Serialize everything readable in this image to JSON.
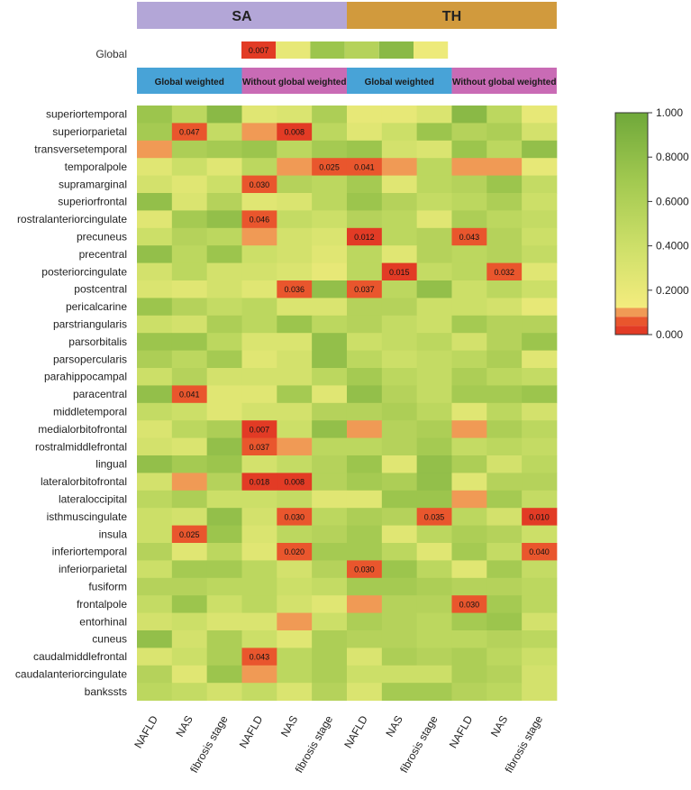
{
  "chart_data": {
    "type": "heatmap",
    "top_groups": [
      {
        "label": "SA",
        "color": "#b3a6d7"
      },
      {
        "label": "TH",
        "color": "#d19a3d"
      }
    ],
    "sub_groups": [
      {
        "label": "Global weighted",
        "color": "#48a3d7"
      },
      {
        "label": "Without global weighted",
        "color": "#c96bb5"
      },
      {
        "label": "Global weighted",
        "color": "#48a3d7"
      },
      {
        "label": "Without global weighted",
        "color": "#c96bb5"
      }
    ],
    "global_row": {
      "label": "Global",
      "values": [
        0.007,
        0.25,
        0.75,
        0.6,
        0.85,
        0.2
      ],
      "value_labels": [
        "0.007",
        "",
        "",
        "",
        "",
        ""
      ]
    },
    "columns": [
      "NAFLD",
      "NAS",
      "fibrosis stage",
      "NAFLD",
      "NAS",
      "fibrosis stage",
      "NAFLD",
      "NAS",
      "fibrosis stage",
      "NAFLD",
      "NAS",
      "fibrosis stage"
    ],
    "rows": [
      "superiortemporal",
      "superiorparietal",
      "transversetemporal",
      "temporalpole",
      "supramarginal",
      "superiorfrontal",
      "rostralanteriorcingulate",
      "precuneus",
      "precentral",
      "posteriorcingulate",
      "postcentral",
      "pericalcarine",
      "parstriangularis",
      "parsorbitalis",
      "parsopercularis",
      "parahippocampal",
      "paracentral",
      "middletemporal",
      "medialorbitofrontal",
      "rostralmiddlefrontal",
      "lingual",
      "lateralorbitofrontal",
      "lateraloccipital",
      "isthmuscingulate",
      "insula",
      "inferiortemporal",
      "inferiorparietal",
      "fusiform",
      "frontalpole",
      "entorhinal",
      "cuneus",
      "caudalmiddlefrontal",
      "caudalanteriorcingulate",
      "bankssts"
    ],
    "values": [
      [
        0.75,
        0.55,
        0.85,
        0.3,
        0.35,
        0.65,
        0.25,
        0.25,
        0.35,
        0.85,
        0.55,
        0.25
      ],
      [
        0.7,
        0.047,
        0.5,
        0.1,
        0.008,
        0.55,
        0.3,
        0.45,
        0.75,
        0.6,
        0.65,
        0.4
      ],
      [
        0.1,
        0.65,
        0.7,
        0.75,
        0.55,
        0.7,
        0.75,
        0.4,
        0.35,
        0.75,
        0.55,
        0.8
      ],
      [
        0.3,
        0.45,
        0.3,
        0.55,
        0.1,
        0.025,
        0.041,
        0.12,
        0.55,
        0.12,
        0.1,
        0.25
      ],
      [
        0.4,
        0.3,
        0.45,
        0.03,
        0.6,
        0.55,
        0.7,
        0.3,
        0.55,
        0.6,
        0.75,
        0.5
      ],
      [
        0.8,
        0.35,
        0.6,
        0.3,
        0.35,
        0.55,
        0.75,
        0.6,
        0.5,
        0.55,
        0.65,
        0.45
      ],
      [
        0.3,
        0.7,
        0.8,
        0.046,
        0.5,
        0.45,
        0.6,
        0.55,
        0.3,
        0.65,
        0.55,
        0.5
      ],
      [
        0.45,
        0.6,
        0.55,
        0.1,
        0.4,
        0.35,
        0.012,
        0.55,
        0.6,
        0.043,
        0.6,
        0.45
      ],
      [
        0.8,
        0.55,
        0.75,
        0.45,
        0.4,
        0.3,
        0.55,
        0.3,
        0.6,
        0.55,
        0.6,
        0.5
      ],
      [
        0.4,
        0.55,
        0.4,
        0.4,
        0.35,
        0.25,
        0.55,
        0.015,
        0.5,
        0.55,
        0.032,
        0.3
      ],
      [
        0.35,
        0.3,
        0.4,
        0.3,
        0.036,
        0.8,
        0.037,
        0.55,
        0.8,
        0.45,
        0.55,
        0.45
      ],
      [
        0.75,
        0.6,
        0.5,
        0.55,
        0.35,
        0.35,
        0.6,
        0.6,
        0.45,
        0.45,
        0.4,
        0.25
      ],
      [
        0.45,
        0.4,
        0.65,
        0.55,
        0.75,
        0.55,
        0.6,
        0.5,
        0.45,
        0.7,
        0.6,
        0.6
      ],
      [
        0.75,
        0.75,
        0.55,
        0.35,
        0.35,
        0.8,
        0.45,
        0.5,
        0.55,
        0.4,
        0.6,
        0.75
      ],
      [
        0.65,
        0.55,
        0.7,
        0.3,
        0.4,
        0.8,
        0.55,
        0.45,
        0.5,
        0.55,
        0.65,
        0.3
      ],
      [
        0.45,
        0.6,
        0.4,
        0.4,
        0.4,
        0.55,
        0.7,
        0.55,
        0.5,
        0.65,
        0.55,
        0.5
      ],
      [
        0.8,
        0.041,
        0.3,
        0.3,
        0.7,
        0.3,
        0.8,
        0.6,
        0.5,
        0.7,
        0.7,
        0.75
      ],
      [
        0.5,
        0.45,
        0.3,
        0.4,
        0.4,
        0.6,
        0.6,
        0.65,
        0.55,
        0.3,
        0.55,
        0.4
      ],
      [
        0.35,
        0.55,
        0.65,
        0.007,
        0.45,
        0.8,
        0.12,
        0.6,
        0.65,
        0.12,
        0.65,
        0.55
      ],
      [
        0.4,
        0.35,
        0.8,
        0.037,
        0.12,
        0.55,
        0.55,
        0.6,
        0.7,
        0.5,
        0.55,
        0.5
      ],
      [
        0.8,
        0.7,
        0.75,
        0.4,
        0.5,
        0.6,
        0.75,
        0.3,
        0.8,
        0.65,
        0.4,
        0.55
      ],
      [
        0.4,
        0.12,
        0.6,
        0.018,
        0.008,
        0.6,
        0.7,
        0.65,
        0.8,
        0.3,
        0.6,
        0.6
      ],
      [
        0.55,
        0.65,
        0.45,
        0.45,
        0.5,
        0.3,
        0.3,
        0.75,
        0.75,
        0.12,
        0.7,
        0.5
      ],
      [
        0.45,
        0.4,
        0.8,
        0.4,
        0.03,
        0.55,
        0.65,
        0.6,
        0.035,
        0.55,
        0.4,
        0.01
      ],
      [
        0.45,
        0.025,
        0.75,
        0.35,
        0.55,
        0.6,
        0.7,
        0.3,
        0.55,
        0.65,
        0.6,
        0.45
      ],
      [
        0.6,
        0.3,
        0.55,
        0.3,
        0.02,
        0.7,
        0.7,
        0.55,
        0.3,
        0.7,
        0.5,
        0.04
      ],
      [
        0.45,
        0.7,
        0.7,
        0.55,
        0.4,
        0.6,
        0.03,
        0.75,
        0.55,
        0.3,
        0.7,
        0.5
      ],
      [
        0.6,
        0.6,
        0.55,
        0.55,
        0.45,
        0.5,
        0.7,
        0.7,
        0.65,
        0.6,
        0.6,
        0.55
      ],
      [
        0.5,
        0.75,
        0.45,
        0.55,
        0.4,
        0.3,
        0.12,
        0.6,
        0.6,
        0.03,
        0.7,
        0.55
      ],
      [
        0.4,
        0.45,
        0.35,
        0.35,
        0.12,
        0.45,
        0.65,
        0.6,
        0.55,
        0.7,
        0.75,
        0.4
      ],
      [
        0.8,
        0.4,
        0.65,
        0.45,
        0.3,
        0.65,
        0.6,
        0.6,
        0.55,
        0.55,
        0.6,
        0.55
      ],
      [
        0.35,
        0.45,
        0.65,
        0.043,
        0.55,
        0.65,
        0.35,
        0.65,
        0.6,
        0.65,
        0.55,
        0.45
      ],
      [
        0.6,
        0.3,
        0.75,
        0.12,
        0.55,
        0.65,
        0.45,
        0.45,
        0.45,
        0.65,
        0.6,
        0.4
      ],
      [
        0.55,
        0.5,
        0.4,
        0.5,
        0.35,
        0.6,
        0.35,
        0.7,
        0.7,
        0.6,
        0.55,
        0.4
      ]
    ],
    "color_scale": {
      "min": 0.0,
      "max": 1.0,
      "ticks": [
        1.0,
        0.8,
        0.6,
        0.4,
        0.2,
        0.0
      ],
      "tick_labels": [
        "1.000",
        "0.8000",
        "0.6000",
        "0.4000",
        "0.2000",
        "0.000"
      ],
      "low_colors": [
        "#e23b25",
        "#e9562d",
        "#f09a55"
      ],
      "gradient_colors": [
        "#f4ec7e",
        "#cfe06a",
        "#a2c950",
        "#6fa83a"
      ]
    }
  }
}
